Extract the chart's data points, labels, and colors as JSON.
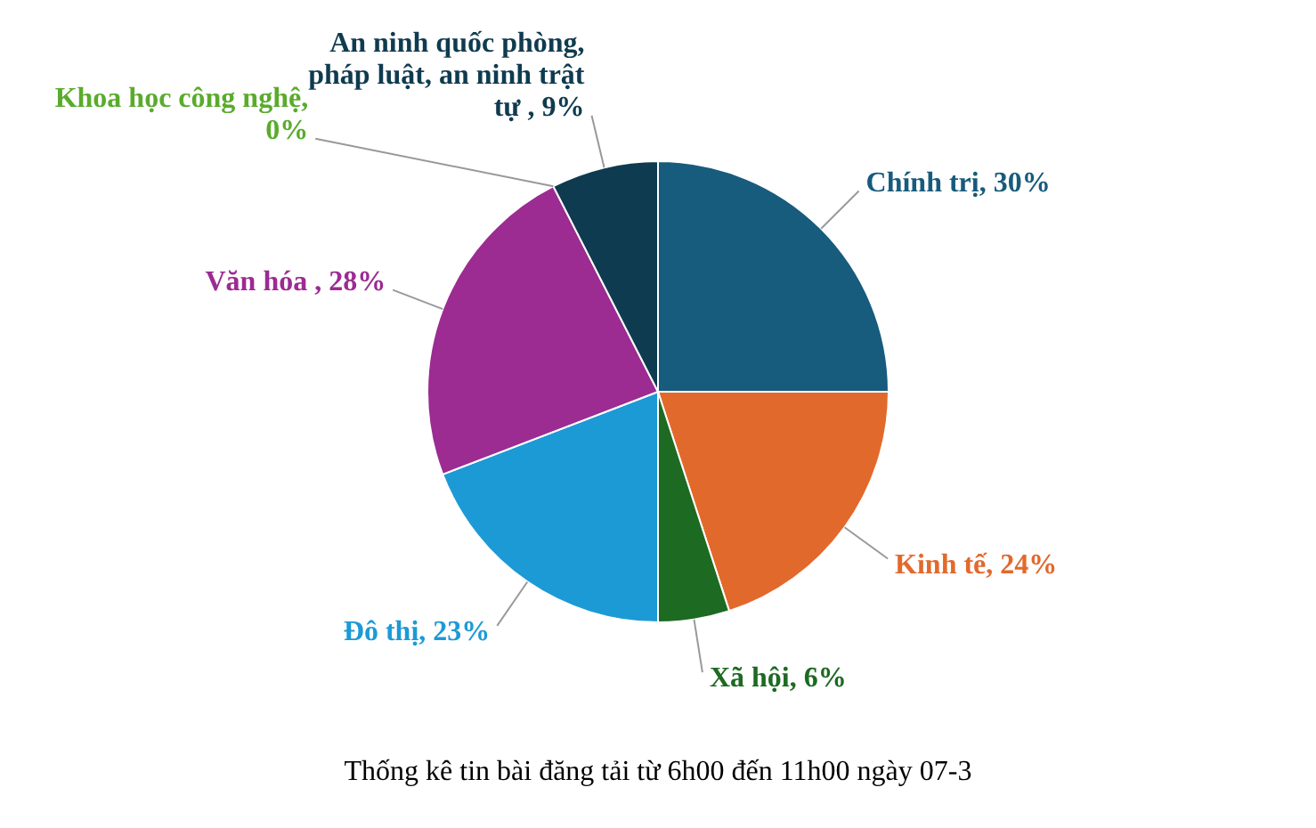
{
  "chart_data": {
    "type": "pie",
    "title": "Thống kê tin bài đăng tải từ 6h00 đến 11h00 ngày 07-3",
    "categories": [
      "Chính trị",
      "Kinh tế",
      "Xã hội",
      "Đô thị",
      "Văn hóa",
      "Khoa học công nghệ",
      "An ninh quốc phòng, pháp luật, an ninh trật tự"
    ],
    "values": [
      30,
      24,
      6,
      23,
      28,
      0,
      9
    ],
    "value_labels": [
      ", 30%",
      ", 24%",
      ", 6%",
      ", 23%",
      " , 28%",
      ", 0%",
      " , 9%"
    ],
    "colors": [
      "#175b7d",
      "#e2692c",
      "#1d6a22",
      "#1c9ad6",
      "#9c2b92",
      "#5aab2c",
      "#0f3b50"
    ],
    "legend": false
  }
}
